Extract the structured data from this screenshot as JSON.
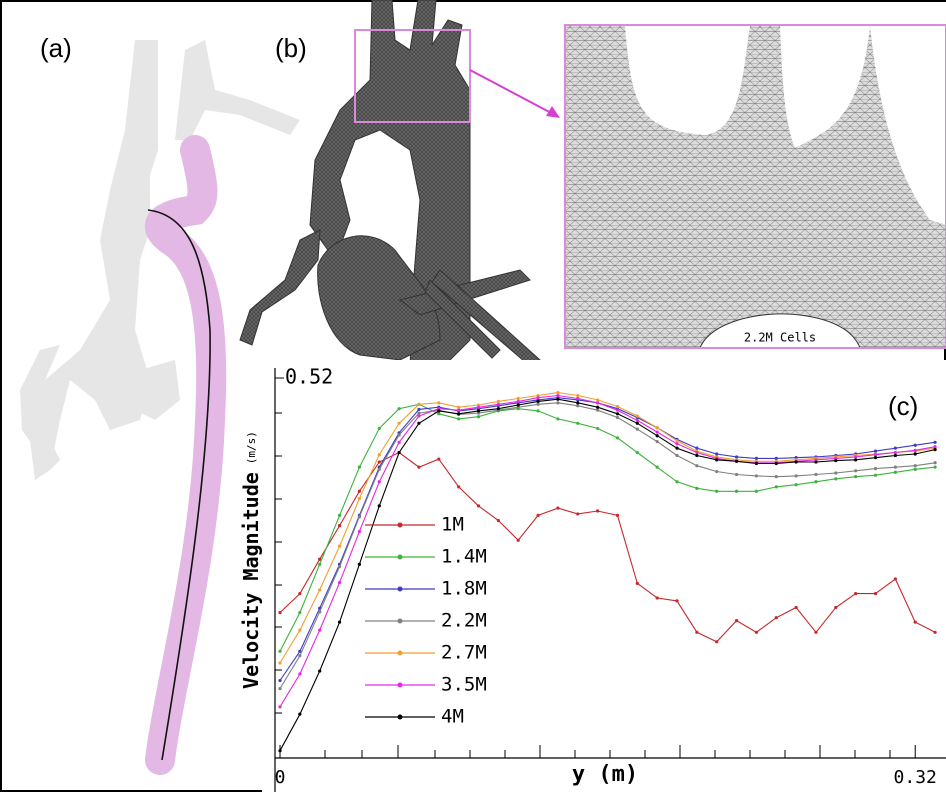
{
  "panels": {
    "a": "(a)",
    "b": "(b)",
    "c": "(c)"
  },
  "inset_label": "2.2M Cells",
  "chart_data": {
    "type": "line",
    "x_label": "y (m)",
    "y_label": "Velocity Magnitude",
    "y_unit": "(m/s)",
    "x": [
      0,
      0.01,
      0.02,
      0.03,
      0.04,
      0.05,
      0.06,
      0.07,
      0.08,
      0.09,
      0.1,
      0.11,
      0.12,
      0.13,
      0.14,
      0.15,
      0.16,
      0.17,
      0.18,
      0.19,
      0.2,
      0.21,
      0.22,
      0.23,
      0.24,
      0.25,
      0.26,
      0.27,
      0.28,
      0.29,
      0.3,
      0.31,
      0.32,
      0.33
    ],
    "xlim": [
      0,
      0.335
    ],
    "xticks": [
      0,
      0.32
    ],
    "ylim": [
      0,
      0.52
    ],
    "yticks": [
      0.52
    ],
    "legend": "lower left",
    "series": [
      {
        "name": "1M",
        "color": "#c8282a",
        "values": [
          0.199,
          0.225,
          0.272,
          0.318,
          0.365,
          0.405,
          0.418,
          0.398,
          0.409,
          0.371,
          0.345,
          0.325,
          0.298,
          0.332,
          0.342,
          0.334,
          0.338,
          0.332,
          0.239,
          0.219,
          0.215,
          0.172,
          0.159,
          0.188,
          0.172,
          0.192,
          0.206,
          0.172,
          0.206,
          0.225,
          0.225,
          0.245,
          0.186,
          0.172
        ]
      },
      {
        "name": "1.4M",
        "color": "#3cb43c",
        "values": [
          0.146,
          0.199,
          0.265,
          0.332,
          0.398,
          0.451,
          0.478,
          0.484,
          0.471,
          0.464,
          0.467,
          0.475,
          0.478,
          0.475,
          0.464,
          0.458,
          0.451,
          0.438,
          0.418,
          0.398,
          0.378,
          0.369,
          0.365,
          0.365,
          0.365,
          0.371,
          0.374,
          0.378,
          0.382,
          0.385,
          0.387,
          0.391,
          0.395,
          0.398
        ]
      },
      {
        "name": "1.8M",
        "color": "#3c3cc8",
        "values": [
          0.106,
          0.146,
          0.205,
          0.265,
          0.332,
          0.398,
          0.445,
          0.477,
          0.48,
          0.475,
          0.478,
          0.482,
          0.486,
          0.49,
          0.493,
          0.49,
          0.486,
          0.478,
          0.466,
          0.452,
          0.436,
          0.424,
          0.416,
          0.412,
          0.41,
          0.41,
          0.411,
          0.412,
          0.414,
          0.416,
          0.42,
          0.424,
          0.428,
          0.432
        ]
      },
      {
        "name": "2.2M",
        "color": "#808080",
        "values": [
          0.095,
          0.14,
          0.2,
          0.262,
          0.33,
          0.395,
          0.442,
          0.472,
          0.476,
          0.47,
          0.472,
          0.476,
          0.48,
          0.484,
          0.486,
          0.482,
          0.476,
          0.466,
          0.45,
          0.433,
          0.414,
          0.4,
          0.392,
          0.388,
          0.386,
          0.385,
          0.386,
          0.388,
          0.39,
          0.393,
          0.396,
          0.398,
          0.4,
          0.404
        ]
      },
      {
        "name": "2.7M",
        "color": "#f0a030",
        "values": [
          0.13,
          0.175,
          0.23,
          0.29,
          0.355,
          0.415,
          0.458,
          0.484,
          0.486,
          0.48,
          0.483,
          0.488,
          0.492,
          0.496,
          0.5,
          0.496,
          0.49,
          0.481,
          0.468,
          0.452,
          0.434,
          0.42,
          0.412,
          0.408,
          0.406,
          0.406,
          0.408,
          0.41,
          0.412,
          0.414,
          0.416,
          0.418,
          0.42,
          0.424
        ]
      },
      {
        "name": "3.5M",
        "color": "#e628e6",
        "values": [
          0.07,
          0.115,
          0.175,
          0.24,
          0.31,
          0.378,
          0.432,
          0.468,
          0.478,
          0.476,
          0.48,
          0.484,
          0.488,
          0.493,
          0.496,
          0.492,
          0.486,
          0.476,
          0.462,
          0.446,
          0.43,
          0.418,
          0.41,
          0.406,
          0.404,
          0.404,
          0.406,
          0.408,
          0.41,
          0.412,
          0.415,
          0.418,
          0.421,
          0.426
        ]
      },
      {
        "name": "4M",
        "color": "#000000",
        "values": [
          0.01,
          0.06,
          0.119,
          0.186,
          0.265,
          0.345,
          0.418,
          0.458,
          0.475,
          0.471,
          0.475,
          0.478,
          0.483,
          0.488,
          0.491,
          0.486,
          0.48,
          0.471,
          0.458,
          0.441,
          0.424,
          0.414,
          0.408,
          0.406,
          0.403,
          0.403,
          0.405,
          0.405,
          0.407,
          0.408,
          0.411,
          0.414,
          0.416,
          0.422
        ]
      }
    ]
  }
}
